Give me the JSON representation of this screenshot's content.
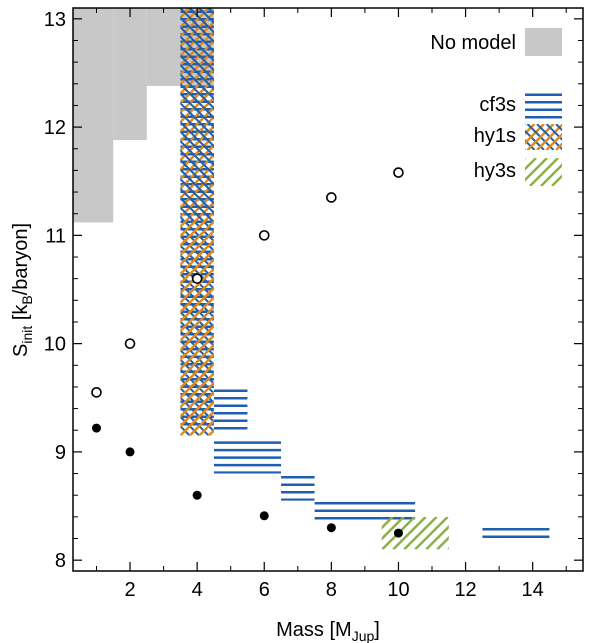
{
  "chart_data": {
    "type": "scatter",
    "title": "",
    "xlabel": {
      "main": "Mass [M",
      "sub": "Jup",
      "tail": "]"
    },
    "ylabel": {
      "main": "S",
      "sub": "init",
      "mid": " [k",
      "sub2": "B",
      "tail": "/baryon]"
    },
    "xlim": [
      0.3,
      15.5
    ],
    "ylim": [
      7.9,
      13.1
    ],
    "xticks": [
      2,
      4,
      6,
      8,
      10,
      12,
      14
    ],
    "yticks": [
      8,
      9,
      10,
      11,
      12,
      13
    ],
    "grid": false,
    "legend_position": "top-right",
    "legend": {
      "no_model": "No model",
      "cf3s": "cf3s",
      "hy1s": "hy1s",
      "hy3s": "hy3s"
    },
    "colors": {
      "no_model": "#c8c8c8",
      "cf3s": "#1f5fad",
      "hy1s": "#e08a1e",
      "hy3s": "#8db04a",
      "points": "#000000"
    },
    "no_model_region": {
      "steps": [
        {
          "x0": 0.3,
          "x1": 1.5,
          "y_min": 11.12
        },
        {
          "x0": 1.5,
          "x1": 2.5,
          "y_min": 11.88
        },
        {
          "x0": 2.5,
          "x1": 3.5,
          "y_min": 12.38
        },
        {
          "x0": 3.5,
          "x1": 4.5,
          "y_min": 12.38
        }
      ],
      "y_top": 13.1
    },
    "hatch_boxes": [
      {
        "series": "cf3s",
        "x": [
          3.5,
          4.5
        ],
        "y": [
          9.2,
          13.1
        ]
      },
      {
        "series": "hy1s",
        "x": [
          3.5,
          4.5
        ],
        "y": [
          9.15,
          13.1
        ]
      },
      {
        "series": "cf3s",
        "x": [
          4.5,
          5.5
        ],
        "y": [
          9.2,
          9.6
        ]
      },
      {
        "series": "cf3s",
        "x": [
          4.5,
          6.5
        ],
        "y": [
          8.8,
          9.12
        ]
      },
      {
        "series": "cf3s",
        "x": [
          6.5,
          7.5
        ],
        "y": [
          8.55,
          8.8
        ]
      },
      {
        "series": "cf3s",
        "x": [
          7.5,
          10.5
        ],
        "y": [
          8.35,
          8.56
        ]
      },
      {
        "series": "cf3s",
        "x": [
          12.5,
          14.5
        ],
        "y": [
          8.15,
          8.32
        ]
      },
      {
        "series": "hy3s",
        "x": [
          9.5,
          11.5
        ],
        "y": [
          8.1,
          8.4
        ]
      }
    ],
    "open_points": [
      {
        "x": 1,
        "y": 9.55
      },
      {
        "x": 2,
        "y": 10.0
      },
      {
        "x": 4,
        "y": 10.6
      },
      {
        "x": 6,
        "y": 11.0
      },
      {
        "x": 8,
        "y": 11.35
      },
      {
        "x": 10,
        "y": 11.58
      }
    ],
    "filled_points": [
      {
        "x": 1,
        "y": 9.22
      },
      {
        "x": 2,
        "y": 9.0
      },
      {
        "x": 4,
        "y": 8.6
      },
      {
        "x": 6,
        "y": 8.41
      },
      {
        "x": 8,
        "y": 8.3
      },
      {
        "x": 10,
        "y": 8.25
      }
    ]
  }
}
